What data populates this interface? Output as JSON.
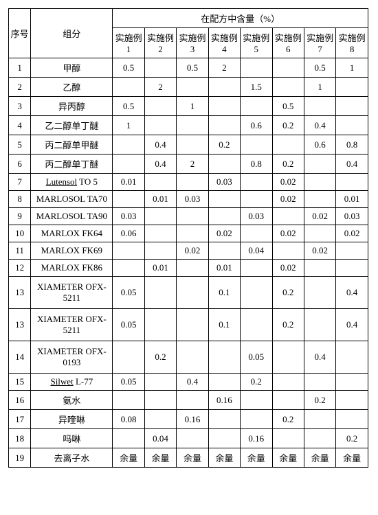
{
  "headers": {
    "seq": "序号",
    "component": "组分",
    "group_title": "在配方中含量（%）",
    "examples": [
      "实施例1",
      "实施例2",
      "实施例3",
      "实施例4",
      "实施例5",
      "实施例6",
      "实施例7",
      "实施例8"
    ]
  },
  "rows": [
    {
      "n": "1",
      "name": "甲醇",
      "v": [
        "0.5",
        "",
        "0.5",
        "2",
        "",
        "",
        "0.5",
        "1"
      ]
    },
    {
      "n": "2",
      "name": "乙醇",
      "v": [
        "",
        "2",
        "",
        "",
        "1.5",
        "",
        "1",
        ""
      ]
    },
    {
      "n": "3",
      "name": "异丙醇",
      "v": [
        "0.5",
        "",
        "1",
        "",
        "",
        "0.5",
        "",
        ""
      ]
    },
    {
      "n": "4",
      "name": "乙二醇单丁醚",
      "v": [
        "1",
        "",
        "",
        "",
        "0.6",
        "0.2",
        "0.4",
        ""
      ]
    },
    {
      "n": "5",
      "name": "丙二醇单甲醚",
      "v": [
        "",
        "0.4",
        "",
        "0.2",
        "",
        "",
        "0.6",
        "0.8"
      ]
    },
    {
      "n": "6",
      "name": "丙二醇单丁醚",
      "v": [
        "",
        "0.4",
        "2",
        "",
        "0.8",
        "0.2",
        "",
        "0.4"
      ]
    },
    {
      "n": "7",
      "name": "Lutensol TO 5",
      "v": [
        "0.01",
        "",
        "",
        "0.03",
        "",
        "0.02",
        "",
        ""
      ],
      "underline": true
    },
    {
      "n": "8",
      "name": "MARLOSOL TA70",
      "v": [
        "",
        "0.01",
        "0.03",
        "",
        "",
        "0.02",
        "",
        "0.01"
      ]
    },
    {
      "n": "9",
      "name": "MARLOSOL TA90",
      "v": [
        "0.03",
        "",
        "",
        "",
        "0.03",
        "",
        "0.02",
        "0.03"
      ]
    },
    {
      "n": "10",
      "name": "MARLOX FK64",
      "v": [
        "0.06",
        "",
        "",
        "0.02",
        "",
        "0.02",
        "",
        "0.02"
      ]
    },
    {
      "n": "11",
      "name": "MARLOX FK69",
      "v": [
        "",
        "",
        "0.02",
        "",
        "0.04",
        "",
        "0.02",
        ""
      ]
    },
    {
      "n": "12",
      "name": "MARLOX FK86",
      "v": [
        "",
        "0.01",
        "",
        "0.01",
        "",
        "0.02",
        "",
        ""
      ]
    },
    {
      "n": "13",
      "name": "XIAMETER OFX-5211",
      "v": [
        "0.05",
        "",
        "",
        "0.1",
        "",
        "0.2",
        "",
        "0.4"
      ],
      "tall": true
    },
    {
      "n": "13",
      "name": "XIAMETER OFX-5211",
      "v": [
        "0.05",
        "",
        "",
        "0.1",
        "",
        "0.2",
        "",
        "0.4"
      ],
      "tall": true
    },
    {
      "n": "14",
      "name": "XIAMETER OFX-0193",
      "v": [
        "",
        "0.2",
        "",
        "",
        "0.05",
        "",
        "0.4",
        ""
      ],
      "tall": true
    },
    {
      "n": "15",
      "name": "Silwet L-77",
      "v": [
        "0.05",
        "",
        "0.4",
        "",
        "0.2",
        "",
        "",
        ""
      ],
      "underline": true
    },
    {
      "n": "16",
      "name": "氨水",
      "v": [
        "",
        "",
        "",
        "0.16",
        "",
        "",
        "0.2",
        ""
      ]
    },
    {
      "n": "17",
      "name": "异喹啉",
      "v": [
        "0.08",
        "",
        "0.16",
        "",
        "",
        "0.2",
        "",
        ""
      ]
    },
    {
      "n": "18",
      "name": "吗啉",
      "v": [
        "",
        "0.04",
        "",
        "",
        "0.16",
        "",
        "",
        "0.2"
      ]
    },
    {
      "n": "19",
      "name": "去离子水",
      "v": [
        "余量",
        "余量",
        "余量",
        "余量",
        "余量",
        "余量",
        "余量",
        "余量"
      ]
    }
  ]
}
